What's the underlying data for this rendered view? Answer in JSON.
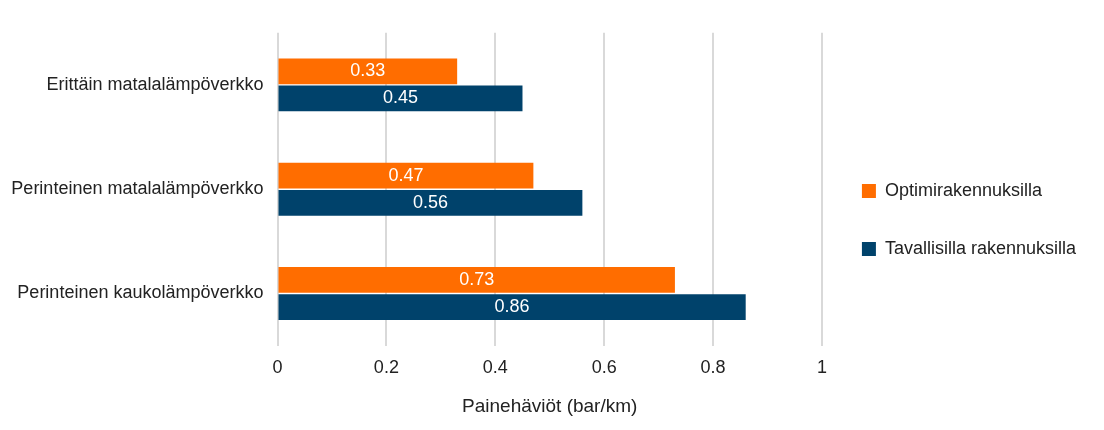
{
  "chart_data": {
    "type": "bar",
    "orientation": "horizontal",
    "xlabel": "Painehäviöt (bar/km)",
    "categories": [
      "Erittäin matalalämpöverkko",
      "Perinteinen matalalämpöverkko",
      "Perinteinen kaukolämpöverkko"
    ],
    "series": [
      {
        "name": "Optimirakennuksilla",
        "color": "#ff6d00",
        "values": [
          0.33,
          0.47,
          0.73
        ]
      },
      {
        "name": "Tavallisilla rakennuksilla",
        "color": "#00426b",
        "values": [
          0.45,
          0.56,
          0.86
        ]
      }
    ],
    "xlim": [
      0,
      1
    ],
    "xticks": [
      0,
      0.2,
      0.4,
      0.6,
      0.8,
      1
    ],
    "grid": "x",
    "legend": "right",
    "data_labels": true
  }
}
